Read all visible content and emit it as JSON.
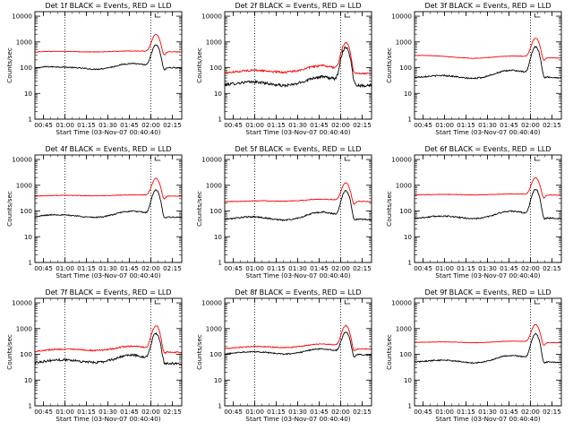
{
  "chart_data": [
    {
      "type": "line",
      "title": "Det 1f BLACK = Events, RED = LLD",
      "xlabel": "Start Time (03-Nov-07 00:40:40)",
      "ylabel": "Counts/sec",
      "yscale": "log",
      "ylim": [
        1,
        15000
      ],
      "xlim": [
        0.65,
        2.36
      ],
      "xticks": [
        "00:45",
        "01:00",
        "01:15",
        "01:30",
        "01:45",
        "02:00",
        "02:15"
      ],
      "yticks": [
        "1",
        "10",
        "100",
        "1000",
        "10000"
      ],
      "marker_lines": [
        1.0,
        2.0
      ],
      "series": [
        {
          "color": "#000000",
          "base": [
            95,
            108,
            108,
            105,
            100,
            94,
            86,
            92,
            108,
            135,
            148,
            132,
            110,
            100,
            100,
            97
          ],
          "peak": 650,
          "noise": 0.05
        },
        {
          "color": "#ff0000",
          "base": [
            400,
            430,
            430,
            430,
            420,
            412,
            408,
            415,
            425,
            440,
            445,
            438,
            420,
            410,
            412,
            410
          ],
          "peak": 1550,
          "noise": 0.025
        }
      ]
    },
    {
      "type": "line",
      "title": "Det 2f BLACK = Events, RED = LLD",
      "xlabel": "Start Time (03-Nov-07 00:40:40)",
      "ylabel": "Counts/sec",
      "yscale": "log",
      "ylim": [
        1,
        15000
      ],
      "xlim": [
        0.65,
        2.36
      ],
      "xticks": [
        "00:45",
        "01:00",
        "01:15",
        "01:30",
        "01:45",
        "02:00",
        "02:15"
      ],
      "yticks": [
        "1",
        "10",
        "100",
        "1000",
        "10000"
      ],
      "marker_lines": [
        1.0,
        2.0
      ],
      "series": [
        {
          "color": "#000000",
          "base": [
            22,
            24,
            27,
            28,
            26,
            22,
            20,
            22,
            28,
            40,
            45,
            38,
            28,
            22,
            20,
            21
          ],
          "peak": 600,
          "noise": 0.12
        },
        {
          "color": "#ff0000",
          "base": [
            62,
            68,
            76,
            80,
            76,
            70,
            66,
            72,
            85,
            110,
            120,
            105,
            78,
            64,
            60,
            62
          ],
          "peak": 880,
          "noise": 0.08
        }
      ]
    },
    {
      "type": "line",
      "title": "Det 3f BLACK = Events, RED = LLD",
      "xlabel": "Start Time (03-Nov-07 00:40:40)",
      "ylabel": "Counts/sec",
      "yscale": "log",
      "ylim": [
        1,
        15000
      ],
      "xlim": [
        0.65,
        2.36
      ],
      "xticks": [
        "00:45",
        "01:00",
        "01:15",
        "01:30",
        "01:45",
        "02:00",
        "02:15"
      ],
      "yticks": [
        "1",
        "10",
        "100",
        "1000",
        "10000"
      ],
      "marker_lines": [
        2.0
      ],
      "series": [
        {
          "color": "#000000",
          "base": [
            42,
            45,
            48,
            50,
            46,
            40,
            38,
            42,
            55,
            72,
            80,
            70,
            52,
            44,
            42,
            40
          ],
          "peak": 600,
          "noise": 0.06
        },
        {
          "color": "#ff0000",
          "base": [
            300,
            298,
            290,
            275,
            255,
            240,
            230,
            238,
            255,
            275,
            285,
            278,
            260,
            245,
            240,
            238
          ],
          "peak": 1150,
          "noise": 0.02
        }
      ]
    },
    {
      "type": "line",
      "title": "Det 4f BLACK = Events, RED = LLD",
      "xlabel": "Start Time (03-Nov-07 00:40:40)",
      "ylabel": "Counts/sec",
      "yscale": "log",
      "ylim": [
        1,
        15000
      ],
      "xlim": [
        0.65,
        2.36
      ],
      "xticks": [
        "00:45",
        "01:00",
        "01:15",
        "01:30",
        "01:45",
        "02:00",
        "02:15"
      ],
      "yticks": [
        "1",
        "10",
        "100",
        "1000",
        "10000"
      ],
      "marker_lines": [
        1.0,
        2.0
      ],
      "series": [
        {
          "color": "#000000",
          "base": [
            58,
            68,
            72,
            70,
            66,
            60,
            56,
            60,
            72,
            92,
            100,
            90,
            70,
            60,
            58,
            56
          ],
          "peak": 580,
          "noise": 0.05
        },
        {
          "color": "#ff0000",
          "base": [
            380,
            390,
            400,
            405,
            400,
            395,
            390,
            395,
            405,
            420,
            425,
            418,
            400,
            385,
            380,
            380
          ],
          "peak": 1450,
          "noise": 0.025
        }
      ]
    },
    {
      "type": "line",
      "title": "Det 5f BLACK = Events, RED = LLD",
      "xlabel": "Start Time (03-Nov-07 00:40:40)",
      "ylabel": "Counts/sec",
      "yscale": "log",
      "ylim": [
        1,
        15000
      ],
      "xlim": [
        0.65,
        2.36
      ],
      "xticks": [
        "00:45",
        "01:00",
        "01:15",
        "01:30",
        "01:45",
        "02:00",
        "02:15"
      ],
      "yticks": [
        "1",
        "10",
        "100",
        "1000",
        "10000"
      ],
      "marker_lines": [
        1.0,
        2.0
      ],
      "series": [
        {
          "color": "#000000",
          "base": [
            48,
            52,
            58,
            60,
            55,
            48,
            44,
            48,
            60,
            82,
            92,
            80,
            60,
            50,
            48,
            46
          ],
          "peak": 560,
          "noise": 0.06
        },
        {
          "color": "#ff0000",
          "base": [
            230,
            235,
            240,
            250,
            250,
            245,
            240,
            245,
            258,
            280,
            290,
            280,
            255,
            240,
            235,
            232
          ],
          "peak": 1000,
          "noise": 0.03
        }
      ]
    },
    {
      "type": "line",
      "title": "Det 6f BLACK = Events, RED = LLD",
      "xlabel": "Start Time (03-Nov-07 00:40:40)",
      "ylabel": "Counts/sec",
      "yscale": "log",
      "ylim": [
        1,
        15000
      ],
      "xlim": [
        0.65,
        2.36
      ],
      "xticks": [
        "00:45",
        "01:00",
        "01:15",
        "01:30",
        "01:45",
        "02:00",
        "02:15"
      ],
      "yticks": [
        "1",
        "10",
        "100",
        "1000",
        "10000"
      ],
      "marker_lines": [
        2.0
      ],
      "series": [
        {
          "color": "#000000",
          "base": [
            52,
            56,
            62,
            64,
            60,
            54,
            50,
            54,
            68,
            90,
            100,
            88,
            66,
            56,
            52,
            50
          ],
          "peak": 620,
          "noise": 0.06
        },
        {
          "color": "#ff0000",
          "base": [
            420,
            430,
            440,
            445,
            440,
            430,
            422,
            428,
            440,
            455,
            460,
            452,
            435,
            420,
            415,
            412
          ],
          "peak": 1500,
          "noise": 0.025
        }
      ]
    },
    {
      "type": "line",
      "title": "Det 7f BLACK = Events, RED = LLD",
      "xlabel": "Start Time (03-Nov-07 00:40:40)",
      "ylabel": "Counts/sec",
      "yscale": "log",
      "ylim": [
        1,
        15000
      ],
      "xlim": [
        0.65,
        2.36
      ],
      "xticks": [
        "00:45",
        "01:00",
        "01:15",
        "01:30",
        "01:45",
        "02:00",
        "02:15"
      ],
      "yticks": [
        "1",
        "10",
        "100",
        "1000",
        "10000"
      ],
      "marker_lines": [
        1.0,
        2.0
      ],
      "series": [
        {
          "color": "#000000",
          "base": [
            48,
            54,
            60,
            62,
            58,
            52,
            48,
            52,
            64,
            85,
            95,
            82,
            60,
            48,
            44,
            42
          ],
          "peak": 580,
          "noise": 0.1
        },
        {
          "color": "#ff0000",
          "base": [
            130,
            145,
            155,
            160,
            155,
            148,
            140,
            148,
            165,
            195,
            210,
            190,
            155,
            128,
            120,
            118
          ],
          "peak": 1150,
          "noise": 0.06
        }
      ]
    },
    {
      "type": "line",
      "title": "Det 8f BLACK = Events, RED = LLD",
      "xlabel": "Start Time (03-Nov-07 00:40:40)",
      "ylabel": "Counts/sec",
      "yscale": "log",
      "ylim": [
        1,
        15000
      ],
      "xlim": [
        0.65,
        2.36
      ],
      "xticks": [
        "00:45",
        "01:00",
        "01:15",
        "01:30",
        "01:45",
        "02:00",
        "02:15"
      ],
      "yticks": [
        "1",
        "10",
        "100",
        "1000",
        "10000"
      ],
      "marker_lines": [
        1.0,
        2.0
      ],
      "series": [
        {
          "color": "#000000",
          "base": [
            100,
            115,
            125,
            128,
            122,
            110,
            102,
            108,
            125,
            155,
            165,
            148,
            118,
            100,
            96,
            95
          ],
          "peak": 620,
          "noise": 0.05
        },
        {
          "color": "#ff0000",
          "base": [
            165,
            180,
            195,
            205,
            200,
            190,
            182,
            190,
            210,
            240,
            255,
            238,
            200,
            170,
            162,
            160
          ],
          "peak": 1120,
          "noise": 0.04
        }
      ]
    },
    {
      "type": "line",
      "title": "Det 9f BLACK = Events, RED = LLD",
      "xlabel": "Start Time (03-Nov-07 00:40:40)",
      "ylabel": "Counts/sec",
      "yscale": "log",
      "ylim": [
        1,
        15000
      ],
      "xlim": [
        0.65,
        2.36
      ],
      "xticks": [
        "00:45",
        "01:00",
        "01:15",
        "01:30",
        "01:45",
        "02:00",
        "02:15"
      ],
      "yticks": [
        "1",
        "10",
        "100",
        "1000",
        "10000"
      ],
      "marker_lines": [
        2.0
      ],
      "series": [
        {
          "color": "#000000",
          "base": [
            50,
            54,
            58,
            60,
            56,
            50,
            46,
            50,
            62,
            84,
            92,
            82,
            62,
            52,
            50,
            48
          ],
          "peak": 560,
          "noise": 0.05
        },
        {
          "color": "#ff0000",
          "base": [
            290,
            295,
            300,
            305,
            300,
            290,
            282,
            288,
            300,
            318,
            325,
            318,
            300,
            288,
            285,
            282
          ],
          "peak": 1150,
          "noise": 0.02
        }
      ]
    }
  ]
}
